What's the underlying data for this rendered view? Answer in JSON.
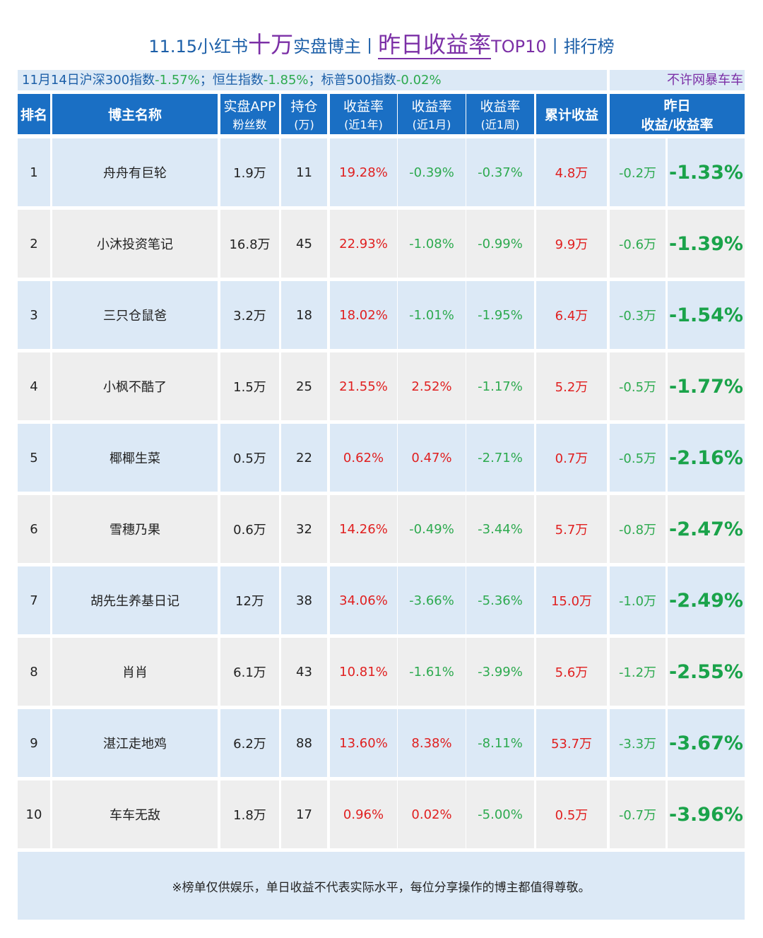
{
  "header": {
    "title": [
      "11.15小红书",
      "十万",
      "实盘博主",
      "丨",
      "昨日收益率",
      "TOP10",
      "丨排行榜"
    ],
    "subtitle": [
      "11月14日沪深300指数",
      "-1.57%",
      "；恒生指数",
      "-1.85%",
      "；标普500指数",
      "-0.02%"
    ],
    "note": "不许网暴车车"
  },
  "table": {
    "columns": [
      [
        "排名"
      ],
      [
        "博主名称"
      ],
      [
        "实盘APP",
        "粉丝数"
      ],
      [
        "持仓",
        "(万)"
      ],
      [
        "收益率",
        "(近1年)"
      ],
      [
        "收益率",
        "(近1月)"
      ],
      [
        "收益率",
        "(近1周)"
      ],
      [
        "累计收益"
      ],
      [
        "昨日",
        "收益/收益率"
      ]
    ],
    "rows": [
      [
        "1",
        "舟舟有巨轮",
        "1.9万",
        "11",
        "19.28%",
        "-0.39%",
        "-0.37%",
        "4.8万",
        "-0.2万",
        "-1.33%"
      ],
      [
        "2",
        "小沐投资笔记",
        "16.8万",
        "45",
        "22.93%",
        "-1.08%",
        "-0.99%",
        "9.9万",
        "-0.6万",
        "-1.39%"
      ],
      [
        "3",
        "三只仓鼠爸",
        "3.2万",
        "18",
        "18.02%",
        "-1.01%",
        "-1.95%",
        "6.4万",
        "-0.3万",
        "-1.54%"
      ],
      [
        "4",
        "小枫不酷了",
        "1.5万",
        "25",
        "21.55%",
        "2.52%",
        "-1.17%",
        "5.2万",
        "-0.5万",
        "-1.77%"
      ],
      [
        "5",
        "椰椰生菜",
        "0.5万",
        "22",
        "0.62%",
        "0.47%",
        "-2.71%",
        "0.7万",
        "-0.5万",
        "-2.16%"
      ],
      [
        "6",
        "雪穗乃果",
        "0.6万",
        "32",
        "14.26%",
        "-0.49%",
        "-3.44%",
        "5.7万",
        "-0.8万",
        "-2.47%"
      ],
      [
        "7",
        "胡先生养基日记",
        "12万",
        "38",
        "34.06%",
        "-3.66%",
        "-5.36%",
        "15.0万",
        "-1.0万",
        "-2.49%"
      ],
      [
        "8",
        "肖肖",
        "6.1万",
        "43",
        "10.81%",
        "-1.61%",
        "-3.99%",
        "5.6万",
        "-1.2万",
        "-2.55%"
      ],
      [
        "9",
        "湛江走地鸡",
        "6.2万",
        "88",
        "13.60%",
        "8.38%",
        "-8.11%",
        "53.7万",
        "-3.3万",
        "-3.67%"
      ],
      [
        "10",
        "车车无敌",
        "1.8万",
        "17",
        "0.96%",
        "0.02%",
        "-5.00%",
        "0.5万",
        "-0.7万",
        "-3.96%"
      ]
    ]
  },
  "footer": "※榜单仅供娱乐，单日收益不代表实际水平，每位分享操作的博主都值得尊敬。"
}
